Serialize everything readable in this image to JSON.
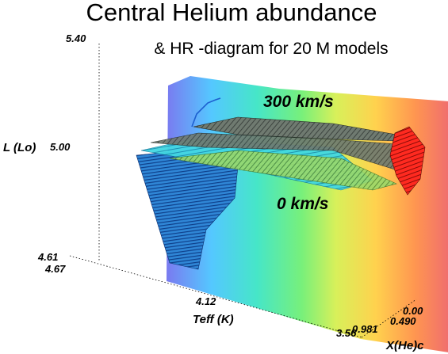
{
  "chart_data": {
    "type": "surface-3d",
    "title": "Central Helium abundance",
    "subtitle": "& HR -diagram for 20 M models",
    "axes": {
      "z": {
        "label": "L (Lo)",
        "ticks": [
          "5.40",
          "5.00",
          "4.61"
        ],
        "range": [
          4.61,
          5.4
        ]
      },
      "x": {
        "label": "Teff (K)",
        "ticks": [
          "4.67",
          "4.12",
          "3.56"
        ],
        "range": [
          3.56,
          4.67
        ]
      },
      "y": {
        "label": "X(He)c",
        "ticks": [
          "0.00",
          "0.490",
          "0.981"
        ],
        "range": [
          0.0,
          0.981
        ]
      }
    },
    "series": [
      {
        "name": "300 km/s"
      },
      {
        "name": "0 km/s"
      }
    ],
    "colormap": [
      "#7a7af0",
      "#54c8ff",
      "#46e6c8",
      "#78f07a",
      "#d8f05a",
      "#ffd24e",
      "#ff9650",
      "#f06e6e"
    ],
    "grid": false
  }
}
